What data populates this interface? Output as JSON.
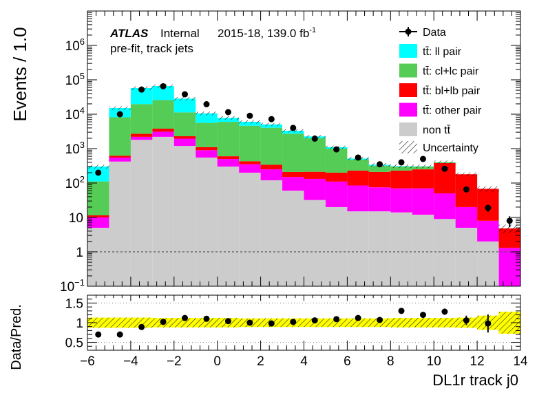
{
  "chart_data": [
    {
      "type": "histogram-stack",
      "panel": "main",
      "ylabel": "Events / 1.0",
      "yscale": "log",
      "ylim": [
        0.1,
        10000000
      ],
      "xlim": [
        -6,
        14
      ],
      "x_edges": [
        -6,
        -5,
        -4,
        -3,
        -2,
        -1,
        0,
        1,
        2,
        3,
        4,
        5,
        6,
        7,
        8,
        9,
        10,
        11,
        12,
        13,
        14
      ],
      "y_ticks": [
        {
          "v": 0.1,
          "base": "10",
          "exp": "−1"
        },
        {
          "v": 1,
          "label": "1"
        },
        {
          "v": 10,
          "label": "10"
        },
        {
          "v": 100,
          "base": "10",
          "exp": "2"
        },
        {
          "v": 1000,
          "base": "10",
          "exp": "3"
        },
        {
          "v": 10000,
          "base": "10",
          "exp": "4"
        },
        {
          "v": 100000,
          "base": "10",
          "exp": "5"
        },
        {
          "v": 1000000,
          "base": "10",
          "exp": "6"
        }
      ],
      "stack": [
        {
          "name": "non tt̄",
          "color": "#cccccc",
          "values": [
            5,
            420,
            1800,
            2200,
            1200,
            550,
            300,
            200,
            120,
            60,
            32,
            20,
            15,
            15,
            14,
            12,
            9,
            5,
            2,
            0
          ]
        },
        {
          "name": "tt̄: other pair",
          "color": "#ff00ff",
          "values": [
            5,
            130,
            400,
            900,
            750,
            350,
            200,
            150,
            130,
            90,
            100,
            90,
            70,
            60,
            56,
            58,
            41,
            15,
            6,
            1.3
          ]
        },
        {
          "name": "tt̄: bl+lb pair",
          "color": "#ff0000",
          "values": [
            1.5,
            70,
            500,
            700,
            350,
            200,
            100,
            80,
            90,
            60,
            80,
            90,
            145,
            135,
            160,
            180,
            330,
            160,
            60,
            3.5
          ]
        },
        {
          "name": "tt̄: cl+lc pair",
          "color": "#55cc55",
          "values": [
            100,
            7500,
            17000,
            22000,
            9000,
            4500,
            5400,
            4200,
            3700,
            2500,
            1800,
            800,
            250,
            110,
            70,
            50,
            20,
            0,
            0,
            0
          ]
        },
        {
          "name": "tt̄: ll pair",
          "color": "#00ffff",
          "values": [
            190,
            7000,
            38000,
            40000,
            17000,
            5000,
            1800,
            1400,
            1000,
            600,
            250,
            100,
            35,
            20,
            10,
            5,
            2,
            0,
            0,
            0
          ]
        }
      ],
      "data": {
        "name": "Data",
        "x": [
          -5.5,
          -4.5,
          -3.5,
          -2.5,
          -1.5,
          -0.5,
          0.5,
          1.5,
          2.5,
          3.5,
          4.5,
          5.5,
          6.5,
          7.5,
          8.5,
          9.5,
          10.5,
          11.5,
          12.5,
          13.5
        ],
        "y": [
          200,
          10000,
          52000,
          65000,
          38000,
          19500,
          11500,
          9000,
          7200,
          4000,
          1950,
          950,
          550,
          350,
          400,
          500,
          260,
          65,
          19,
          8
        ],
        "yerr_rel": [
          0.07,
          0.01,
          0.005,
          0.004,
          0.005,
          0.007,
          0.01,
          0.01,
          0.012,
          0.016,
          0.023,
          0.033,
          0.043,
          0.053,
          0.05,
          0.045,
          0.062,
          0.124,
          0.23,
          0.35
        ]
      },
      "uncertainty_name": "Uncertainty",
      "reference_line": 1,
      "legend_placement": "top-right",
      "annotations": {
        "atlas": "ATLAS",
        "internal": "Internal",
        "lumi_prefix": "2015-18, 139.0 fb",
        "lumi_sup": "-1",
        "selection": "pre-fit, track jets"
      }
    },
    {
      "type": "ratio",
      "panel": "ratio",
      "xlabel": "DL1r track j0",
      "ylabel": "Data/Pred.",
      "ylim": [
        0.3,
        1.7
      ],
      "y_ticks": [
        {
          "v": 0.5,
          "label": "0.5"
        },
        {
          "v": 1,
          "label": "1"
        },
        {
          "v": 1.5,
          "label": "1.5"
        }
      ],
      "dotted_lines": [
        0.5,
        1.5
      ],
      "x_ticks": [
        -6,
        -4,
        -2,
        0,
        2,
        4,
        6,
        8,
        10,
        12,
        14
      ],
      "x_tick_labels": [
        "−6",
        "−4",
        "−2",
        "0",
        "2",
        "4",
        "6",
        "8",
        "10",
        "12",
        "14"
      ],
      "x": [
        -5.5,
        -4.5,
        -3.5,
        -2.5,
        -1.5,
        -0.5,
        0.5,
        1.5,
        2.5,
        3.5,
        4.5,
        5.5,
        6.5,
        7.5,
        8.5,
        9.5,
        10.5,
        11.5,
        12.5
      ],
      "y": [
        0.7,
        0.7,
        0.89,
        1.02,
        1.12,
        1.1,
        1.04,
        1.0,
        0.98,
        1.02,
        1.06,
        1.09,
        1.12,
        1.07,
        1.3,
        1.2,
        1.28,
        1.06,
        0.98
      ],
      "yerr": [
        0.01,
        0.01,
        0.005,
        0.004,
        0.005,
        0.007,
        0.01,
        0.01,
        0.012,
        0.016,
        0.023,
        0.033,
        0.043,
        0.053,
        0.05,
        0.045,
        0.08,
        0.12,
        0.23
      ],
      "band_half_width": [
        0.13,
        0.13,
        0.13,
        0.12,
        0.12,
        0.12,
        0.12,
        0.11,
        0.11,
        0.11,
        0.11,
        0.11,
        0.11,
        0.11,
        0.12,
        0.12,
        0.12,
        0.13,
        0.18,
        0.28
      ]
    }
  ]
}
